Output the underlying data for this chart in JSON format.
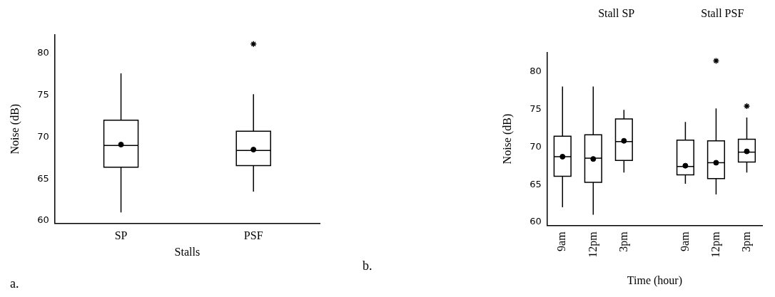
{
  "chart_data": [
    {
      "type": "box",
      "categories": [
        "SP",
        "PSF"
      ],
      "xlabel": "Stalls",
      "ylabel": "Noise (dB)",
      "ylim": [
        59.7,
        82.2
      ],
      "yticks": [
        60,
        65,
        70,
        75,
        80
      ],
      "grid": false,
      "legend": false,
      "annotations": [
        "a."
      ],
      "boxes": [
        {
          "low": 61.0,
          "q1": 66.4,
          "median": 69.0,
          "q3": 72.0,
          "high": 77.6,
          "mean": 69.1
        },
        {
          "low": 63.5,
          "q1": 66.6,
          "median": 68.4,
          "q3": 70.7,
          "high": 75.1,
          "mean": 68.5,
          "outliers": [
            81.1
          ]
        }
      ]
    },
    {
      "type": "box",
      "categories": [
        "9am",
        "12pm",
        "3pm",
        null,
        "9am",
        "12pm",
        "3pm"
      ],
      "xlabel": "Time (hour)",
      "ylabel": "Noise (dB)",
      "ylim": [
        59.6,
        82.5
      ],
      "yticks": [
        60,
        65,
        70,
        75,
        80
      ],
      "grid": false,
      "legend": false,
      "annotations": [
        "Stall SP",
        "Stall PSF",
        "b."
      ],
      "boxes": [
        {
          "low": 62.0,
          "q1": 66.1,
          "median": 68.7,
          "q3": 71.4,
          "high": 78.0,
          "mean": 68.7
        },
        {
          "low": 61.0,
          "q1": 65.3,
          "median": 68.5,
          "q3": 71.6,
          "high": 78.0,
          "mean": 68.4
        },
        {
          "low": 66.6,
          "q1": 68.2,
          "median": 70.7,
          "q3": 73.7,
          "high": 74.9,
          "mean": 70.8
        },
        null,
        {
          "low": 65.1,
          "q1": 66.3,
          "median": 67.4,
          "q3": 70.9,
          "high": 73.3,
          "mean": 67.5
        },
        {
          "low": 63.7,
          "q1": 65.8,
          "median": 67.9,
          "q3": 70.8,
          "high": 75.1,
          "mean": 67.9,
          "outliers": [
            81.4
          ]
        },
        {
          "low": 66.6,
          "q1": 68.0,
          "median": 69.3,
          "q3": 71.0,
          "high": 73.9,
          "mean": 69.4,
          "outliers": [
            75.4
          ]
        }
      ]
    }
  ]
}
